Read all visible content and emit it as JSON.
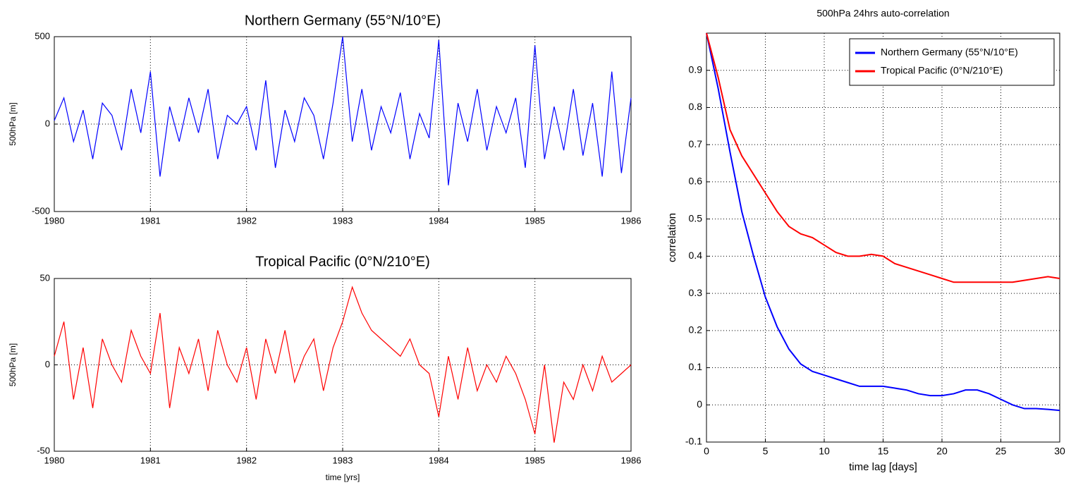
{
  "chart_data": [
    {
      "type": "line",
      "title": "Northern Germany (55°N/10°E)",
      "ylabel": "500hPa [m]",
      "color": "#0000ff",
      "grid": true,
      "xlim": [
        1980,
        1986
      ],
      "xticks": [
        1980,
        1981,
        1982,
        1983,
        1984,
        1985,
        1986
      ],
      "ylim": [
        -500,
        500
      ],
      "yticks": [
        -500,
        0,
        500
      ],
      "x": [
        1980,
        1980.1,
        1980.2,
        1980.3,
        1980.4,
        1980.5,
        1980.6,
        1980.7,
        1980.8,
        1980.9,
        1981,
        1981.1,
        1981.2,
        1981.3,
        1981.4,
        1981.5,
        1981.6,
        1981.7,
        1981.8,
        1981.9,
        1982,
        1982.1,
        1982.2,
        1982.3,
        1982.4,
        1982.5,
        1982.6,
        1982.7,
        1982.8,
        1982.9,
        1983,
        1983.1,
        1983.2,
        1983.3,
        1983.4,
        1983.5,
        1983.6,
        1983.7,
        1983.8,
        1983.9,
        1984,
        1984.1,
        1984.2,
        1984.3,
        1984.4,
        1984.5,
        1984.6,
        1984.7,
        1984.8,
        1984.9,
        1985,
        1985.1,
        1985.2,
        1985.3,
        1985.4,
        1985.5,
        1985.6,
        1985.7,
        1985.8,
        1985.9,
        1986
      ],
      "values": [
        20,
        150,
        -100,
        80,
        -200,
        120,
        50,
        -150,
        200,
        -50,
        300,
        -300,
        100,
        -100,
        150,
        -50,
        200,
        -200,
        50,
        0,
        100,
        -150,
        250,
        -250,
        80,
        -100,
        150,
        50,
        -200,
        120,
        500,
        -100,
        200,
        -150,
        100,
        -50,
        180,
        -200,
        60,
        -80,
        480,
        -350,
        120,
        -100,
        200,
        -150,
        100,
        -50,
        150,
        -250,
        450,
        -200,
        100,
        -150,
        200,
        -180,
        120,
        -300,
        300,
        -280,
        150
      ]
    },
    {
      "type": "line",
      "title": "Tropical Pacific (0°N/210°E)",
      "ylabel": "500hPa [m]",
      "xlabel": "time [yrs]",
      "color": "#ff0000",
      "grid": true,
      "xlim": [
        1980,
        1986
      ],
      "xticks": [
        1980,
        1981,
        1982,
        1983,
        1984,
        1985,
        1986
      ],
      "ylim": [
        -50,
        50
      ],
      "yticks": [
        -50,
        0,
        50
      ],
      "x": [
        1980,
        1980.1,
        1980.2,
        1980.3,
        1980.4,
        1980.5,
        1980.6,
        1980.7,
        1980.8,
        1980.9,
        1981,
        1981.1,
        1981.2,
        1981.3,
        1981.4,
        1981.5,
        1981.6,
        1981.7,
        1981.8,
        1981.9,
        1982,
        1982.1,
        1982.2,
        1982.3,
        1982.4,
        1982.5,
        1982.6,
        1982.7,
        1982.8,
        1982.9,
        1983,
        1983.1,
        1983.2,
        1983.3,
        1983.4,
        1983.5,
        1983.6,
        1983.7,
        1983.8,
        1983.9,
        1984,
        1984.1,
        1984.2,
        1984.3,
        1984.4,
        1984.5,
        1984.6,
        1984.7,
        1984.8,
        1984.9,
        1985,
        1985.1,
        1985.2,
        1985.3,
        1985.4,
        1985.5,
        1985.6,
        1985.7,
        1985.8,
        1985.9,
        1986
      ],
      "values": [
        5,
        25,
        -20,
        10,
        -25,
        15,
        0,
        -10,
        20,
        5,
        -5,
        30,
        -25,
        10,
        -5,
        15,
        -15,
        20,
        0,
        -10,
        10,
        -20,
        15,
        -5,
        20,
        -10,
        5,
        15,
        -15,
        10,
        25,
        45,
        30,
        20,
        15,
        10,
        5,
        15,
        0,
        -5,
        -30,
        5,
        -20,
        10,
        -15,
        0,
        -10,
        5,
        -5,
        -20,
        -40,
        0,
        -45,
        -10,
        -20,
        0,
        -15,
        5,
        -10,
        -5,
        0
      ]
    },
    {
      "type": "line",
      "title": "500hPa 24hrs auto-correlation",
      "xlabel": "time lag [days]",
      "ylabel": "correlation",
      "grid": true,
      "legend": "upper right",
      "xlim": [
        0,
        30
      ],
      "xticks": [
        0,
        5,
        10,
        15,
        20,
        25,
        30
      ],
      "ylim": [
        -0.1,
        1
      ],
      "yticks": [
        -0.1,
        0,
        0.1,
        0.2,
        0.3,
        0.4,
        0.5,
        0.6,
        0.7,
        0.8,
        0.9
      ],
      "x": [
        0,
        1,
        2,
        3,
        4,
        5,
        6,
        7,
        8,
        9,
        10,
        11,
        12,
        13,
        14,
        15,
        16,
        17,
        18,
        19,
        20,
        21,
        22,
        23,
        24,
        25,
        26,
        27,
        28,
        29,
        30
      ],
      "series": [
        {
          "name": "Northern Germany (55°N/10°E)",
          "color": "#0000ff",
          "values": [
            1.0,
            0.85,
            0.68,
            0.52,
            0.4,
            0.29,
            0.21,
            0.15,
            0.11,
            0.09,
            0.08,
            0.07,
            0.06,
            0.05,
            0.05,
            0.05,
            0.045,
            0.04,
            0.03,
            0.025,
            0.025,
            0.03,
            0.04,
            0.04,
            0.03,
            0.015,
            0.0,
            -0.01,
            -0.01,
            -0.012,
            -0.015
          ]
        },
        {
          "name": "Tropical Pacific (0°N/210°E)",
          "color": "#ff0000",
          "values": [
            1.0,
            0.88,
            0.74,
            0.67,
            0.62,
            0.57,
            0.52,
            0.48,
            0.46,
            0.45,
            0.43,
            0.41,
            0.4,
            0.4,
            0.405,
            0.4,
            0.38,
            0.37,
            0.36,
            0.35,
            0.34,
            0.33,
            0.33,
            0.33,
            0.33,
            0.33,
            0.33,
            0.335,
            0.34,
            0.345,
            0.34
          ]
        }
      ]
    }
  ]
}
